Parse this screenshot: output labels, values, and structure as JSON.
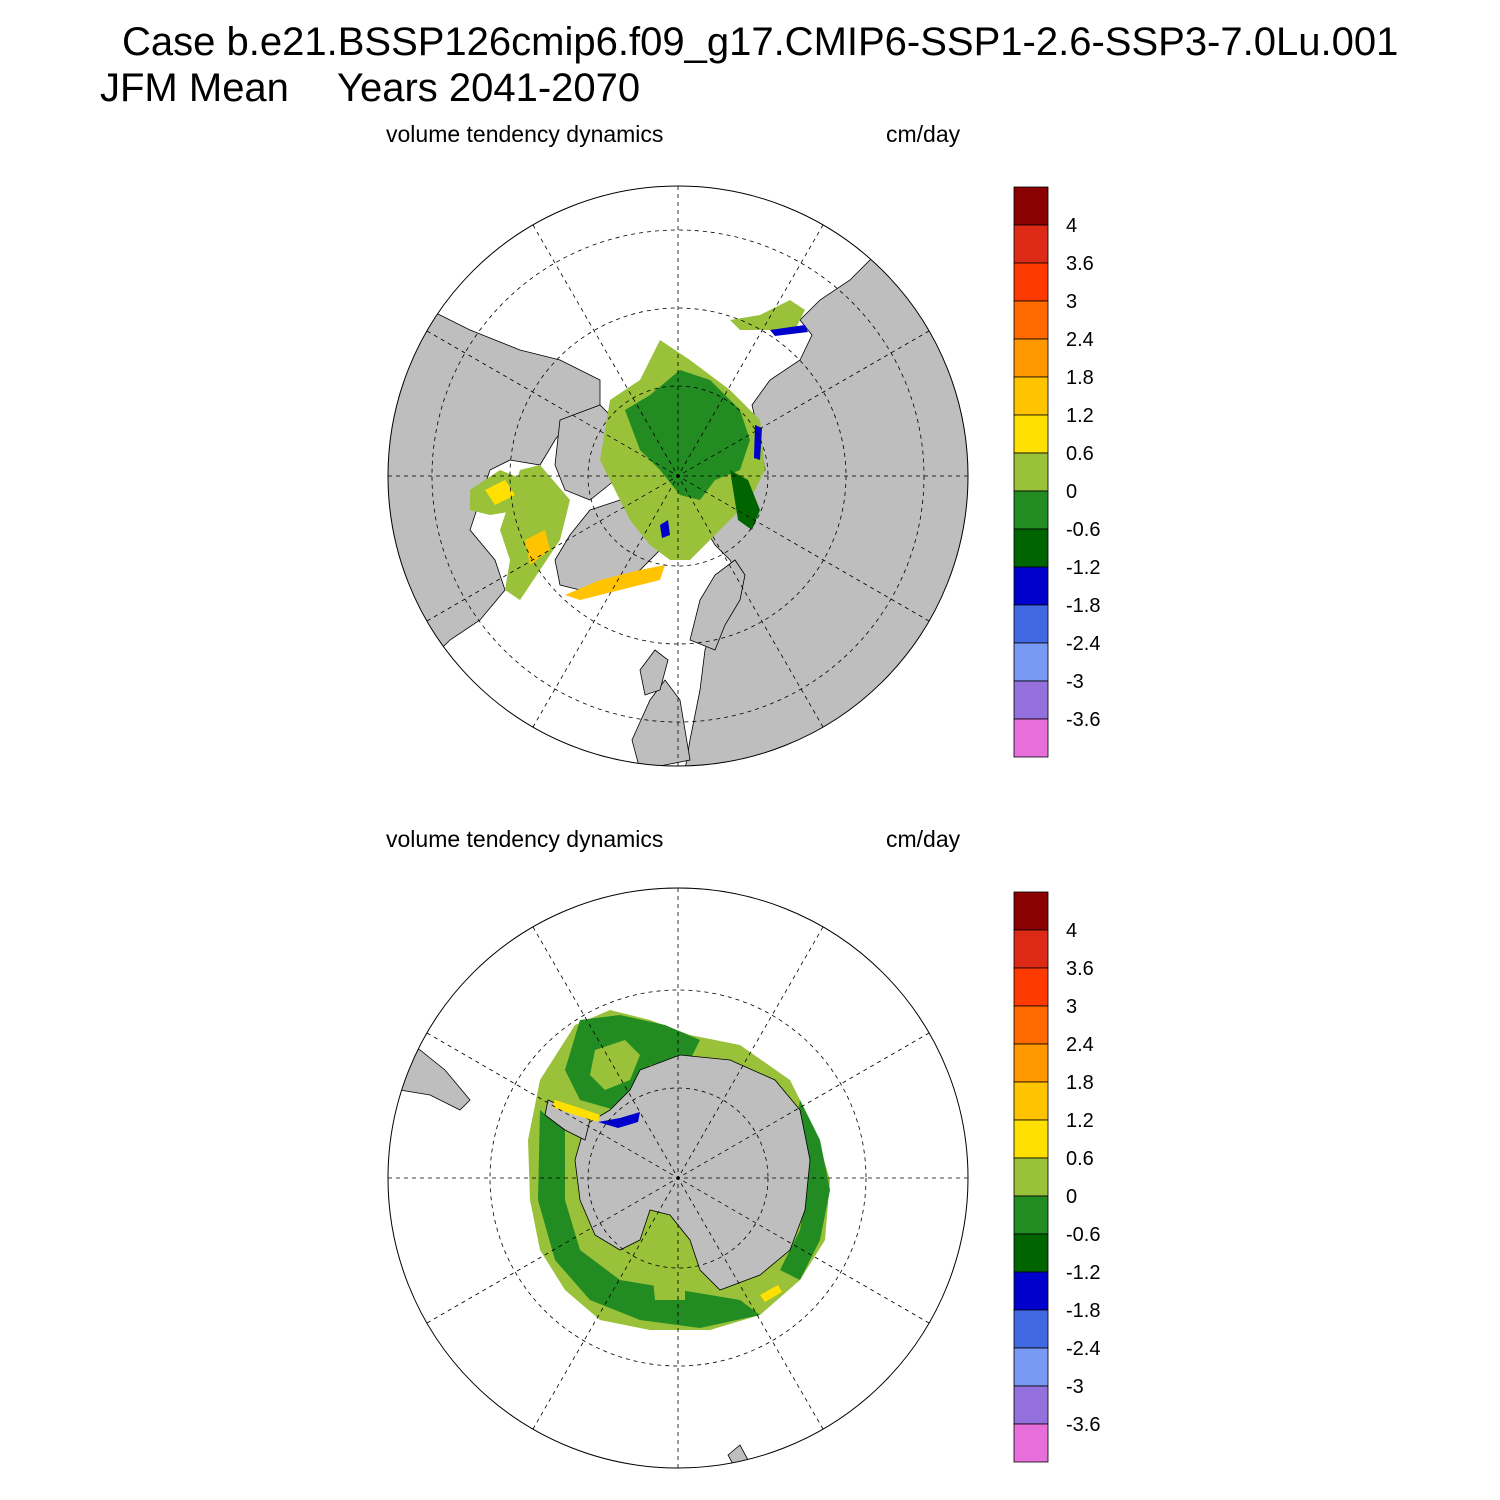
{
  "title": {
    "case": "Case b.e21.BSSP126cmip6.f09_g17.CMIP6-SSP1-2.6-SSP3-7.0Lu.001",
    "season": "JFM Mean",
    "period": "Years 2041-2070"
  },
  "panels": [
    {
      "id": "north",
      "hemisphere": "Northern Hemisphere polar stereographic",
      "left_label": "volume tendency dynamics",
      "right_label": "cm/day"
    },
    {
      "id": "south",
      "hemisphere": "Southern Hemisphere polar stereographic",
      "left_label": "volume tendency dynamics",
      "right_label": "cm/day"
    }
  ],
  "colorbar": {
    "units": "cm/day",
    "levels": [
      "4",
      "3.6",
      "3",
      "2.4",
      "1.8",
      "1.2",
      "0.6",
      "0",
      "-0.6",
      "-1.2",
      "-1.8",
      "-2.4",
      "-3",
      "-3.6"
    ],
    "colors": [
      "#8b0000",
      "#dc2a17",
      "#ff3a00",
      "#ff6a00",
      "#ff9800",
      "#ffc300",
      "#ffe000",
      "#99c13a",
      "#228b22",
      "#006400",
      "#0000cd",
      "#4169e1",
      "#7899f4",
      "#9370db",
      "#e86fdb"
    ]
  },
  "colors": {
    "land": "#bebebe",
    "coastline": "#000000",
    "grid": "#000000",
    "background": "#ffffff"
  },
  "chart_data": [
    {
      "type": "heatmap",
      "title": "volume tendency dynamics",
      "units": "cm/day",
      "projection": "north polar stereographic",
      "grid": true,
      "legend_placement": "right",
      "color_levels": [
        -3.6,
        -3,
        -2.4,
        -1.8,
        -1.2,
        -0.6,
        0,
        0.6,
        1.2,
        1.8,
        2.4,
        3,
        3.6,
        4
      ]
    },
    {
      "type": "heatmap",
      "title": "volume tendency dynamics",
      "units": "cm/day",
      "projection": "south polar stereographic",
      "grid": true,
      "legend_placement": "right",
      "color_levels": [
        -3.6,
        -3,
        -2.4,
        -1.8,
        -1.2,
        -0.6,
        0,
        0.6,
        1.2,
        1.8,
        2.4,
        3,
        3.6,
        4
      ]
    }
  ]
}
